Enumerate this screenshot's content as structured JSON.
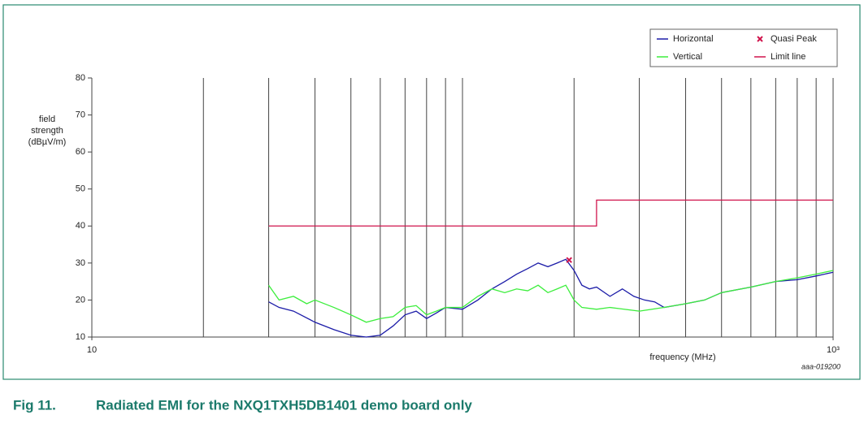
{
  "chart_data": {
    "type": "line",
    "figure_label": "Fig 11.",
    "caption": "Radiated EMI for the NXQ1TXH5DB1401 demo board only",
    "y_label": [
      "field",
      "strength",
      "(dBµV/m)"
    ],
    "x_label": "frequency (MHz)",
    "code": "aaa-019200",
    "x_log": true,
    "xlim": [
      10,
      1000
    ],
    "xticks": [
      10,
      {
        "value": 1000,
        "label": "10³"
      }
    ],
    "x_grid_lines": [
      20,
      30,
      40,
      50,
      60,
      70,
      80,
      90,
      100,
      200,
      300,
      400,
      500,
      600,
      700,
      800,
      900
    ],
    "ylim": [
      10,
      80
    ],
    "yticks": [
      10,
      20,
      30,
      40,
      50,
      60,
      70,
      80
    ],
    "series": [
      {
        "name": "Horizontal",
        "color": "#1c1ca8",
        "x": [
          30,
          32,
          35,
          40,
          45,
          50,
          55,
          60,
          65,
          70,
          75,
          80,
          85,
          90,
          100,
          110,
          120,
          130,
          140,
          150,
          160,
          170,
          180,
          190,
          200,
          210,
          220,
          230,
          250,
          270,
          290,
          310,
          330,
          350,
          400,
          450,
          500,
          600,
          700,
          800,
          900,
          1000
        ],
        "values": [
          19.5,
          18,
          17,
          14,
          12,
          10.5,
          10,
          10.5,
          13,
          16,
          17,
          15,
          16.5,
          18,
          17.5,
          20,
          23,
          25,
          27,
          28.5,
          30,
          29,
          30,
          31,
          28,
          24,
          23,
          23.5,
          21,
          23,
          21,
          20,
          19.5,
          18,
          19,
          20,
          22,
          23.5,
          25,
          25.5,
          26.5,
          27.5
        ]
      },
      {
        "name": "Vertical",
        "color": "#3cee3c",
        "x": [
          30,
          32,
          35,
          38,
          40,
          45,
          50,
          55,
          60,
          65,
          70,
          75,
          80,
          85,
          90,
          100,
          110,
          120,
          130,
          140,
          150,
          160,
          170,
          180,
          190,
          200,
          210,
          230,
          250,
          300,
          350,
          400,
          450,
          500,
          600,
          700,
          800,
          900,
          1000
        ],
        "values": [
          24,
          20,
          21,
          19,
          20,
          18,
          16,
          14,
          15,
          15.5,
          18,
          18.5,
          16,
          17,
          18,
          18,
          21,
          23,
          22,
          23,
          22.5,
          24,
          22,
          23,
          24,
          20,
          18,
          17.5,
          18,
          17,
          18,
          19,
          20,
          22,
          23.5,
          25,
          26,
          27,
          28
        ]
      },
      {
        "name": "Limit line",
        "color": "#d0144c",
        "x": [
          30,
          230,
          230,
          1000
        ],
        "values": [
          40,
          40,
          47,
          47
        ]
      }
    ],
    "markers": {
      "name": "Quasi Peak",
      "color": "#d0144c",
      "x": [
        194
      ],
      "values": [
        30.8
      ]
    }
  }
}
